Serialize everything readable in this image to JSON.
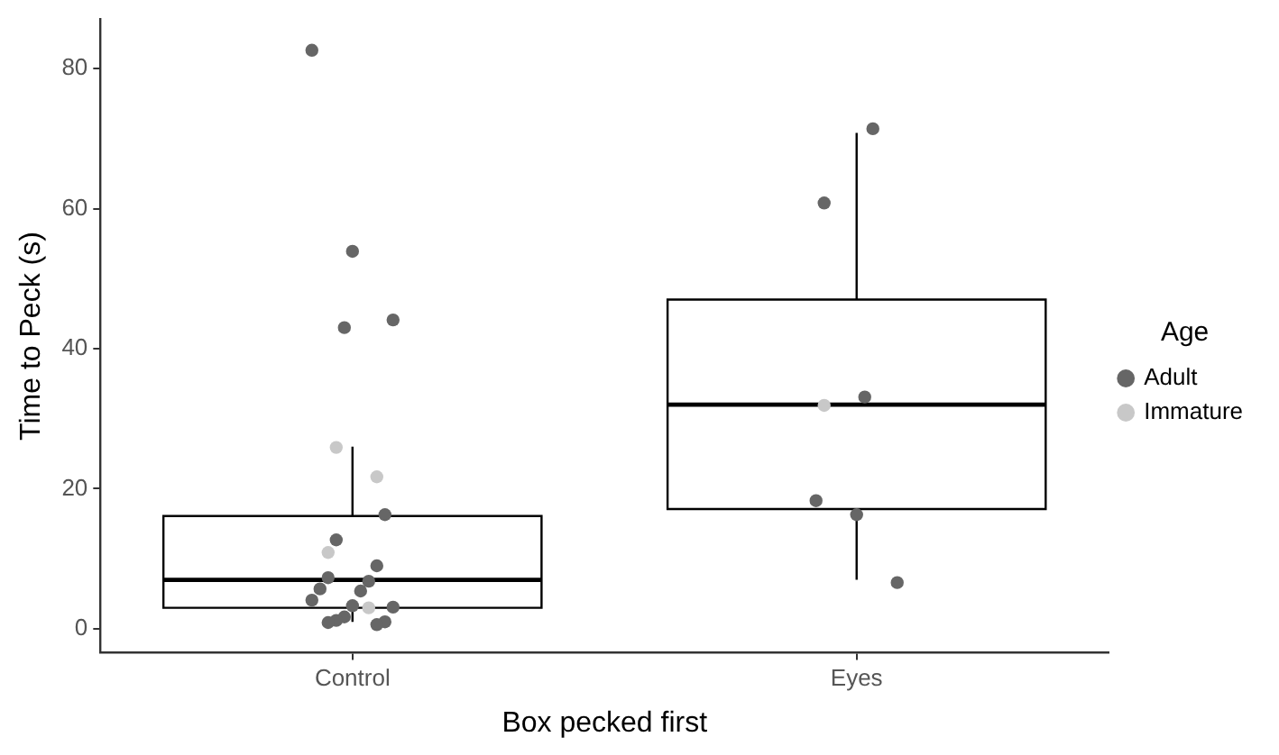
{
  "chart_data": {
    "type": "box",
    "xlabel": "Box pecked first",
    "ylabel": "Time to Peck (s)",
    "legend_title": "Age",
    "categories": [
      "Control",
      "Eyes"
    ],
    "color": "#000000",
    "boxes": [
      {
        "low": 1.0,
        "q1": 3.0,
        "median": 7.0,
        "q3": 16.1,
        "high": 26.0
      },
      {
        "low": 7.0,
        "q1": 17.1,
        "median": 32.0,
        "q3": 47.0,
        "high": 70.8
      }
    ],
    "series": [
      {
        "type": "scatter",
        "name": "Adult",
        "color": "#666666",
        "x": [
          "Control",
          "Control",
          "Control",
          "Control",
          "Control",
          "Control",
          "Control",
          "Control",
          "Control",
          "Control",
          "Control",
          "Control",
          "Control",
          "Control",
          "Control",
          "Control",
          "Control",
          "Control",
          "Control",
          "Eyes",
          "Eyes",
          "Eyes",
          "Eyes",
          "Eyes",
          "Eyes"
        ],
        "values": [
          82.6,
          53.9,
          44.1,
          43.0,
          16.3,
          12.7,
          9.0,
          7.3,
          6.8,
          5.7,
          5.4,
          4.1,
          3.3,
          3.1,
          1.7,
          1.0,
          1.2,
          0.6,
          0.9,
          71.4,
          60.8,
          33.1,
          18.3,
          16.3,
          6.6
        ]
      },
      {
        "type": "scatter",
        "name": "Immature",
        "color": "#c8c8c8",
        "x": [
          "Control",
          "Control",
          "Control",
          "Control",
          "Eyes"
        ],
        "values": [
          25.9,
          21.7,
          10.9,
          3.0,
          31.9
        ]
      }
    ],
    "ylim": [
      -3.4,
      87
    ],
    "yticks": [
      0,
      20,
      40,
      60,
      80
    ],
    "marker": "circle",
    "legend": "right"
  }
}
